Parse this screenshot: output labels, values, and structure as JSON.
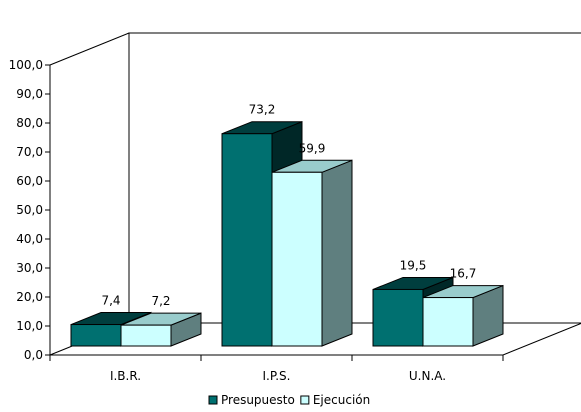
{
  "chart_data": {
    "type": "bar",
    "title": "",
    "xlabel": "",
    "ylabel": "",
    "categories": [
      "I.B.R.",
      "I.P.S.",
      "U.N.A."
    ],
    "series": [
      {
        "name": "Presupuesto",
        "values": [
          7.4,
          73.2,
          19.5
        ],
        "labels": [
          "7,4",
          "73,2",
          "19,5"
        ],
        "color": "#007070"
      },
      {
        "name": "Ejecución",
        "values": [
          7.2,
          59.9,
          16.7
        ],
        "labels": [
          "7,2",
          "59,9",
          "16,7"
        ],
        "color": "#CCFFFF"
      }
    ],
    "ylim": [
      0,
      100
    ],
    "yticks": [
      0,
      10,
      20,
      30,
      40,
      50,
      60,
      70,
      80,
      90,
      100
    ],
    "ytick_labels": [
      "0,0",
      "10,0",
      "20,0",
      "30,0",
      "40,0",
      "50,0",
      "60,0",
      "70,0",
      "80,0",
      "90,0",
      "100,0"
    ],
    "grid": false,
    "legend_position": "bottom",
    "style": "3d-clustered-bar"
  }
}
